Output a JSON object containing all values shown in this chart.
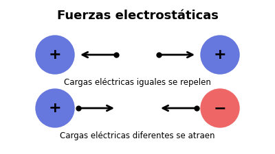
{
  "title": "Fuerzas electrostáticas",
  "title_fontsize": 13,
  "title_fontweight": "bold",
  "bg_color": "#ffffff",
  "blue_color": "#6677dd",
  "red_color": "#ee6666",
  "caption1": "Cargas eléctricas iguales se repelen",
  "caption2": "Cargas eléctricas diferentes se atraen",
  "caption_fontsize": 8.5,
  "sign_fontsize": 16,
  "sign_fontweight": "bold",
  "fig_width": 4.0,
  "fig_height": 2.25,
  "dpi": 100
}
